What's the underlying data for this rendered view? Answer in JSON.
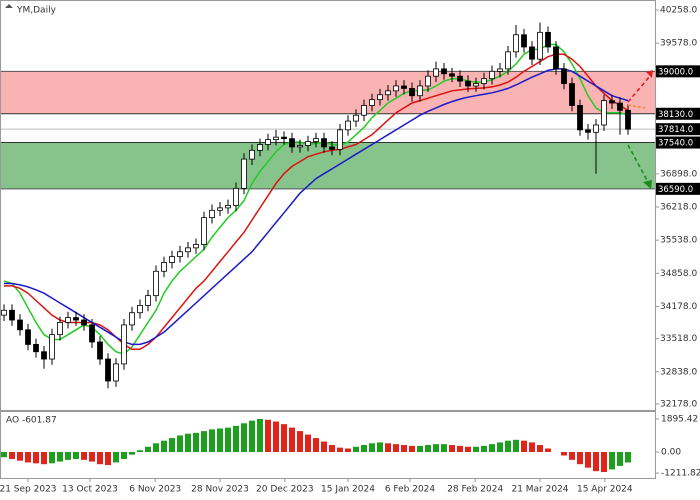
{
  "chart_data": {
    "type": "candlestick",
    "title": "YM,Daily",
    "ylim": [
      32055,
      40422
    ],
    "yticks": [
      {
        "value": 40258,
        "label": "40258.0"
      },
      {
        "value": 39578,
        "label": "39578.0"
      },
      {
        "value": 36898,
        "label": "36898.0"
      },
      {
        "value": 36218,
        "label": "36218.0"
      },
      {
        "value": 35538,
        "label": "35538.0"
      },
      {
        "value": 34858,
        "label": "34858.0"
      },
      {
        "value": 34178,
        "label": "34178.0"
      },
      {
        "value": 33518,
        "label": "33518.0"
      },
      {
        "value": 32838,
        "label": "32838.0"
      },
      {
        "value": 32178,
        "label": "32178.0"
      }
    ],
    "levels": [
      {
        "value": 39000,
        "label": "39000.0",
        "color": "#555555"
      },
      {
        "value": 38130,
        "label": "38130.0",
        "color": "#333333"
      },
      {
        "value": 37814,
        "label": "37814.0",
        "color": "#bbbbbb"
      },
      {
        "value": 37540,
        "label": "37540.0",
        "color": "#333333"
      },
      {
        "value": 36590,
        "label": "36590.0",
        "color": "#555555"
      }
    ],
    "zones": [
      {
        "from": 38130,
        "to": 39000,
        "color": "#f9b3b3"
      },
      {
        "from": 36590,
        "to": 37540,
        "color": "#86c48c"
      }
    ],
    "xlim": [
      -0.5,
      81.375
    ],
    "xticks": [
      {
        "value": 3,
        "label": "21 Sep 2023"
      },
      {
        "value": 10.75,
        "label": "13 Oct 2023"
      },
      {
        "value": 18.9,
        "label": "6 Nov 2023"
      },
      {
        "value": 27,
        "label": "28 Nov 2023"
      },
      {
        "value": 35.1,
        "label": "20 Dec 2023"
      },
      {
        "value": 43,
        "label": "15 Jan 2024"
      },
      {
        "value": 50.75,
        "label": "6 Feb 2024"
      },
      {
        "value": 58.9,
        "label": "28 Feb 2024"
      },
      {
        "value": 67,
        "label": "21 Mar 2024"
      },
      {
        "value": 75.1,
        "label": "15 Apr 2024"
      }
    ],
    "candles": {
      "open": [
        34000,
        34100,
        33900,
        33700,
        33400,
        33250,
        33100,
        33600,
        33850,
        33950,
        33900,
        33800,
        33450,
        33100,
        32650,
        33000,
        33800,
        34050,
        34200,
        34400,
        34900,
        35080,
        35200,
        35300,
        35380,
        35450,
        36000,
        36150,
        36200,
        36250,
        36600,
        37200,
        37380,
        37500,
        37600,
        37650,
        37620,
        37450,
        37480,
        37560,
        37620,
        37450,
        37400,
        37800,
        37980,
        38100,
        38300,
        38420,
        38520,
        38600,
        38700,
        38650,
        38500,
        38700,
        38900,
        39050,
        38950,
        38900,
        38800,
        38700,
        38750,
        38850,
        39000,
        39050,
        39400,
        39750,
        39500,
        39250,
        39800,
        39500,
        39050,
        38750,
        38300,
        37800,
        37750,
        37900,
        38400,
        38350,
        38200
      ],
      "high": [
        34220,
        34220,
        34020,
        33820,
        33520,
        33370,
        33720,
        33970,
        34070,
        34070,
        34020,
        33920,
        33570,
        33220,
        33120,
        33920,
        34170,
        34320,
        34520,
        35020,
        35200,
        35320,
        35420,
        35500,
        35570,
        36120,
        36270,
        36320,
        36370,
        36720,
        37320,
        37500,
        37620,
        37720,
        37800,
        37770,
        37740,
        37600,
        37680,
        37740,
        37740,
        37570,
        37920,
        38100,
        38220,
        38420,
        38540,
        38640,
        38720,
        38820,
        38820,
        38770,
        38820,
        39020,
        39200,
        39170,
        39070,
        39020,
        38920,
        38870,
        38970,
        39120,
        39170,
        39520,
        39950,
        39870,
        39620,
        40000,
        39920,
        39620,
        39170,
        38870,
        38420,
        37920,
        38020,
        38520,
        38520,
        38470,
        38320
      ],
      "low": [
        33880,
        33780,
        33580,
        33280,
        33130,
        32900,
        32980,
        33480,
        33730,
        33780,
        33680,
        33330,
        32980,
        32500,
        32530,
        32880,
        33680,
        33930,
        34080,
        34280,
        34780,
        34960,
        35080,
        35180,
        35260,
        35330,
        35880,
        36030,
        36080,
        36130,
        36480,
        37080,
        37260,
        37380,
        37480,
        37500,
        37330,
        37330,
        37360,
        37440,
        37330,
        37280,
        37280,
        37680,
        37860,
        37980,
        38180,
        38300,
        38400,
        38480,
        38530,
        38380,
        38380,
        38580,
        38780,
        38830,
        38780,
        38680,
        38580,
        38580,
        38630,
        38730,
        38880,
        38930,
        39280,
        39380,
        39130,
        39130,
        39380,
        38930,
        38630,
        38180,
        37680,
        37600,
        36900,
        37780,
        38230,
        37700,
        37700
      ],
      "close": [
        34100,
        33900,
        33700,
        33400,
        33250,
        33100,
        33600,
        33850,
        33950,
        33900,
        33800,
        33450,
        33100,
        32650,
        33000,
        33800,
        34050,
        34200,
        34400,
        34900,
        35080,
        35200,
        35300,
        35380,
        35450,
        36000,
        36150,
        36200,
        36250,
        36600,
        37200,
        37380,
        37500,
        37600,
        37650,
        37620,
        37450,
        37480,
        37560,
        37620,
        37450,
        37400,
        37800,
        37980,
        38100,
        38300,
        38420,
        38520,
        38600,
        38700,
        38650,
        38500,
        38700,
        38900,
        39050,
        38950,
        38900,
        38800,
        38700,
        38750,
        38850,
        39000,
        39050,
        39400,
        39750,
        39500,
        39250,
        39800,
        39500,
        39050,
        38750,
        38300,
        37800,
        37750,
        37900,
        38400,
        38350,
        38200,
        37814
      ]
    },
    "ma": [
      {
        "color": "#22cc22",
        "values": [
          34700,
          34650,
          34450,
          34150,
          33850,
          33600,
          33500,
          33500,
          33600,
          33700,
          33800,
          33750,
          33600,
          33400,
          33250,
          33200,
          33350,
          33600,
          33850,
          34100,
          34450,
          34700,
          34900,
          35050,
          35200,
          35350,
          35600,
          35800,
          36000,
          36150,
          36350,
          36700,
          36950,
          37150,
          37350,
          37500,
          37550,
          37550,
          37500,
          37520,
          37550,
          37500,
          37480,
          37550,
          37700,
          37850,
          38050,
          38200,
          38350,
          38450,
          38550,
          38600,
          38600,
          38620,
          38700,
          38800,
          38850,
          38850,
          38800,
          38780,
          38780,
          38830,
          38900,
          39000,
          39150,
          39350,
          39450,
          39450,
          39550,
          39550,
          39400,
          39150,
          38850,
          38500,
          38250,
          38150,
          38150,
          38150,
          38100
        ]
      },
      {
        "color": "#dd1111",
        "values": [
          34600,
          34600,
          34550,
          34450,
          34300,
          34150,
          34000,
          33900,
          33850,
          33850,
          33850,
          33850,
          33800,
          33700,
          33550,
          33400,
          33300,
          33300,
          33400,
          33550,
          33750,
          33950,
          34150,
          34350,
          34550,
          34700,
          34900,
          35100,
          35300,
          35500,
          35700,
          35950,
          36200,
          36450,
          36700,
          36900,
          37050,
          37150,
          37250,
          37300,
          37350,
          37380,
          37400,
          37450,
          37500,
          37600,
          37700,
          37850,
          38000,
          38150,
          38250,
          38350,
          38400,
          38450,
          38500,
          38550,
          38600,
          38620,
          38640,
          38650,
          38660,
          38680,
          38720,
          38780,
          38880,
          39000,
          39100,
          39200,
          39300,
          39350,
          39350,
          39250,
          39100,
          38900,
          38700,
          38550,
          38400,
          38300,
          38200
        ]
      },
      {
        "color": "#1a1acc",
        "values": [
          34650,
          34650,
          34620,
          34580,
          34520,
          34450,
          34350,
          34250,
          34150,
          34050,
          33950,
          33850,
          33750,
          33650,
          33550,
          33450,
          33400,
          33400,
          33450,
          33550,
          33650,
          33800,
          33950,
          34100,
          34250,
          34400,
          34550,
          34700,
          34850,
          35000,
          35150,
          35300,
          35500,
          35700,
          35900,
          36100,
          36300,
          36500,
          36650,
          36800,
          36900,
          37000,
          37100,
          37200,
          37300,
          37400,
          37500,
          37600,
          37700,
          37800,
          37900,
          38000,
          38100,
          38180,
          38250,
          38320,
          38380,
          38430,
          38470,
          38500,
          38530,
          38560,
          38600,
          38650,
          38720,
          38800,
          38880,
          38950,
          39020,
          39050,
          39050,
          39000,
          38900,
          38800,
          38700,
          38600,
          38500,
          38450,
          38400
        ]
      }
    ],
    "ao": {
      "label": "AO -601.87",
      "ylim": [
        -1493,
        2297
      ],
      "yticks": [
        1895.42,
        {
          "value": 0,
          "label": "0.00"
        },
        -1211.82
      ],
      "up_color": "#1e9e1e",
      "down_color": "#e0241b",
      "values": [
        -300,
        -400,
        -500,
        -600,
        -650,
        -700,
        -650,
        -550,
        -450,
        -400,
        -450,
        -550,
        -700,
        -750,
        -600,
        -400,
        -150,
        100,
        300,
        500,
        650,
        800,
        950,
        1050,
        1100,
        1200,
        1300,
        1350,
        1400,
        1500,
        1650,
        1800,
        1895,
        1850,
        1750,
        1600,
        1400,
        1200,
        1000,
        800,
        600,
        400,
        250,
        200,
        300,
        400,
        500,
        550,
        500,
        450,
        400,
        350,
        350,
        400,
        450,
        450,
        400,
        350,
        300,
        300,
        350,
        450,
        550,
        650,
        700,
        650,
        550,
        400,
        200,
        0,
        -200,
        -450,
        -700,
        -900,
        -1100,
        -1150,
        -1000,
        -800,
        -601.87
      ]
    }
  }
}
